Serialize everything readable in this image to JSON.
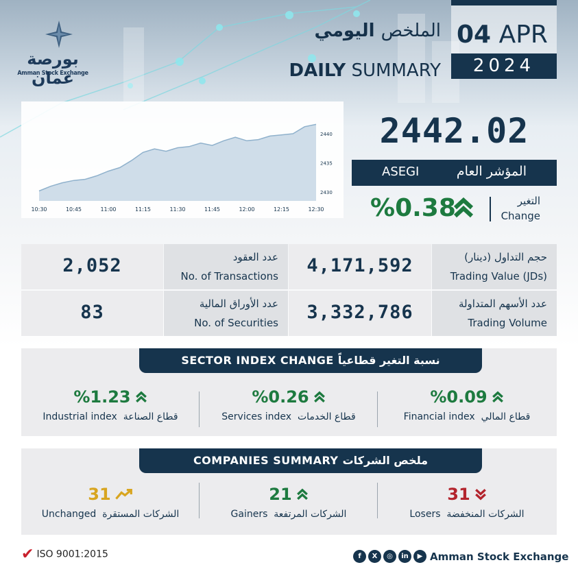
{
  "logo": {
    "name_ar": "بورصة عمان",
    "name_en": "Amman Stock Exchange"
  },
  "header": {
    "title_ar_thin": "الملخص",
    "title_ar_bold": "اليومي",
    "title_en_bold": "DAILY",
    "title_en_thin": "SUMMARY",
    "day": "04",
    "month": "APR",
    "year": "2024"
  },
  "index": {
    "value": "2442.02",
    "name_ar": "المؤشر العام",
    "name_en": "ASEGI",
    "change": "%0.38",
    "change_label_ar": "التغير",
    "change_label_en": "Change",
    "change_color": "#1d7a3f"
  },
  "chart_data": {
    "type": "area",
    "x": [
      "10:30",
      "10:35",
      "10:40",
      "10:45",
      "10:50",
      "10:55",
      "11:00",
      "11:05",
      "11:10",
      "11:15",
      "11:20",
      "11:25",
      "11:30",
      "11:35",
      "11:40",
      "11:45",
      "11:50",
      "11:55",
      "12:00",
      "12:05",
      "12:10",
      "12:15",
      "12:20",
      "12:25",
      "12:30"
    ],
    "x_ticks": [
      "10:30",
      "10:45",
      "11:00",
      "11:15",
      "11:30",
      "11:45",
      "12:00",
      "12:15",
      "12:30"
    ],
    "y_ticks": [
      "2440",
      "2435",
      "2430"
    ],
    "values": [
      2430.2,
      2431.0,
      2431.6,
      2432.0,
      2432.2,
      2432.8,
      2433.6,
      2434.2,
      2435.4,
      2436.8,
      2437.4,
      2437.0,
      2437.6,
      2437.8,
      2438.4,
      2438.0,
      2438.8,
      2439.4,
      2438.8,
      2439.0,
      2439.6,
      2439.8,
      2440.0,
      2441.2,
      2441.6
    ],
    "ylim": [
      2428.5,
      2442
    ],
    "grid": false
  },
  "stats": {
    "trading_value_ar": "حجم التداول (دينار)",
    "trading_value_en": "Trading Value (JDs)",
    "trading_value": "4,171,592",
    "transactions_ar": "عدد العقود",
    "transactions_en": "No. of Transactions",
    "transactions": "2,052",
    "trading_volume_ar": "عدد الأسهم المتداولة",
    "trading_volume_en": "Trading Volume",
    "trading_volume": "3,332,786",
    "securities_ar": "عدد الأوراق المالية",
    "securities_en": "No. of Securities",
    "securities": "83"
  },
  "sectors": {
    "title": "SECTOR INDEX CHANGE  نسبة التغير قطاعياً",
    "items": [
      {
        "value": "%1.23",
        "en": "Industrial index",
        "ar": "قطاع الصناعة"
      },
      {
        "value": "%0.26",
        "en": "Services index",
        "ar": "قطاع الخدمات"
      },
      {
        "value": "%0.09",
        "en": "Financial index",
        "ar": "قطاع المالي"
      }
    ]
  },
  "companies": {
    "title": "COMPANIES SUMMARY  ملخص الشركات",
    "unchanged": {
      "value": "31",
      "en": "Unchanged",
      "ar": "الشركات المستقرة",
      "color": "#d8a520"
    },
    "gainers": {
      "value": "21",
      "en": "Gainers",
      "ar": "الشركات المرتفعة",
      "color": "#1d7a3f"
    },
    "losers": {
      "value": "31",
      "en": "Losers",
      "ar": "الشركات المنخفضة",
      "color": "#b3242d"
    }
  },
  "footer": {
    "iso": "ISO 9001:2015",
    "org": "Amman Stock Exchange",
    "social_icons": [
      "facebook-icon",
      "x-icon",
      "instagram-icon",
      "linkedin-icon",
      "youtube-icon"
    ]
  }
}
